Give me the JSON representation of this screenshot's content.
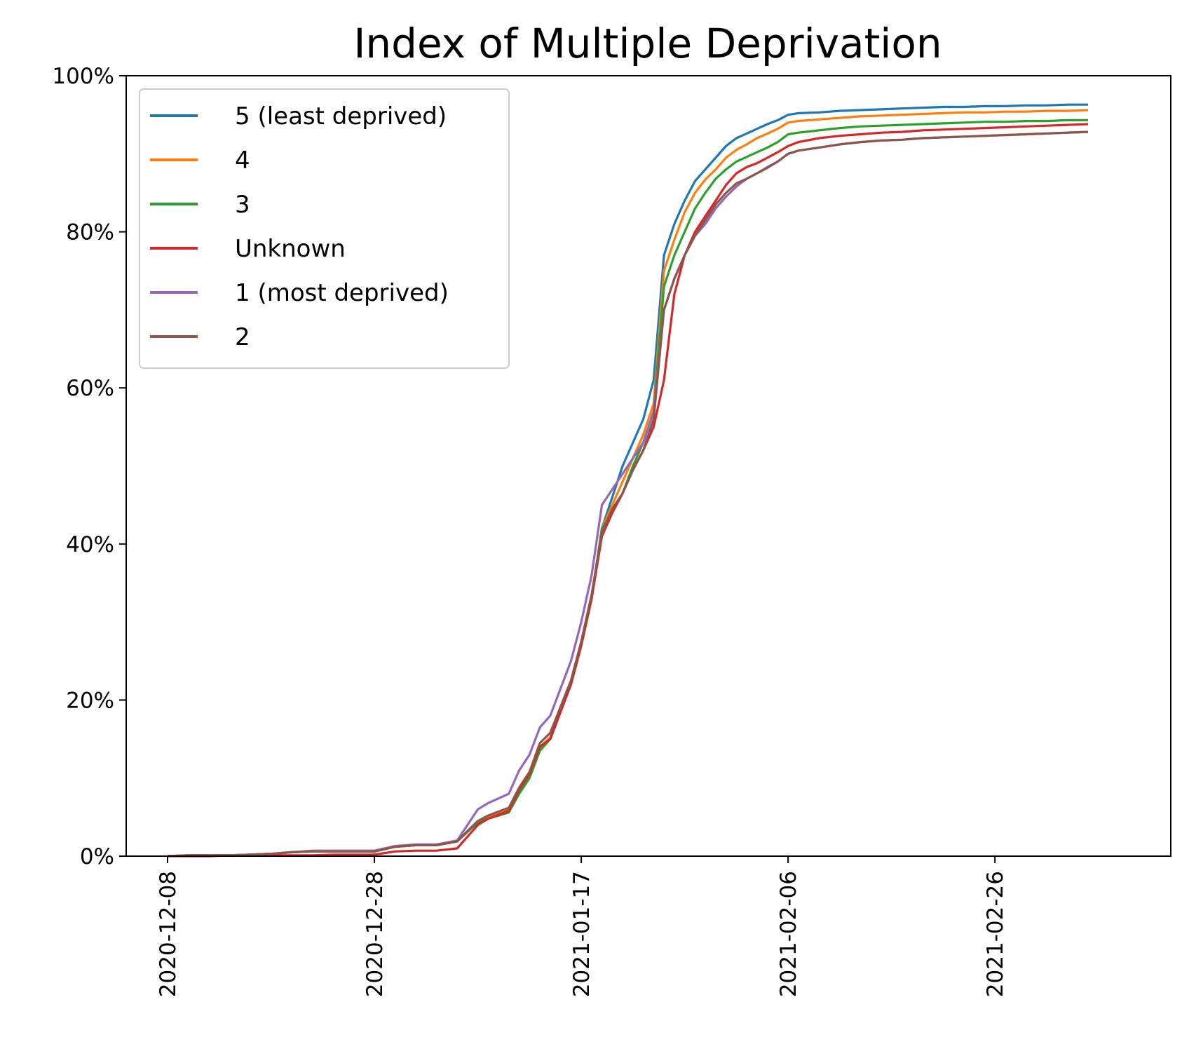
{
  "chart_data": {
    "type": "line",
    "title": "Index of Multiple Deprivation",
    "xlabel": "",
    "ylabel": "",
    "x_unit": "date",
    "x_range": [
      "2020-12-04",
      "2021-03-15"
    ],
    "ylim": [
      0,
      100
    ],
    "y_ticks": [
      0,
      20,
      40,
      60,
      80,
      100
    ],
    "y_tick_labels": [
      "0%",
      "20%",
      "40%",
      "60%",
      "80%",
      "100%"
    ],
    "x_ticks": [
      "2020-12-08",
      "2020-12-28",
      "2021-01-17",
      "2021-02-06",
      "2021-02-26"
    ],
    "x_tick_labels": [
      "2020-12-08",
      "2020-12-28",
      "2021-01-17",
      "2021-02-06",
      "2021-02-26"
    ],
    "grid": false,
    "legend_position": "top-left",
    "x": [
      "2020-12-08",
      "2020-12-10",
      "2020-12-12",
      "2020-12-14",
      "2020-12-16",
      "2020-12-18",
      "2020-12-20",
      "2020-12-22",
      "2020-12-24",
      "2020-12-26",
      "2020-12-28",
      "2020-12-30",
      "2021-01-01",
      "2021-01-03",
      "2021-01-05",
      "2021-01-07",
      "2021-01-08",
      "2021-01-10",
      "2021-01-11",
      "2021-01-12",
      "2021-01-13",
      "2021-01-14",
      "2021-01-16",
      "2021-01-17",
      "2021-01-18",
      "2021-01-19",
      "2021-01-20",
      "2021-01-21",
      "2021-01-22",
      "2021-01-23",
      "2021-01-24",
      "2021-01-25",
      "2021-01-26",
      "2021-01-27",
      "2021-01-28",
      "2021-01-29",
      "2021-01-30",
      "2021-01-31",
      "2021-02-01",
      "2021-02-02",
      "2021-02-03",
      "2021-02-04",
      "2021-02-05",
      "2021-02-06",
      "2021-02-07",
      "2021-02-09",
      "2021-02-11",
      "2021-02-13",
      "2021-02-15",
      "2021-02-17",
      "2021-02-19",
      "2021-02-21",
      "2021-02-23",
      "2021-02-25",
      "2021-02-27",
      "2021-03-01",
      "2021-03-03",
      "2021-03-05",
      "2021-03-07"
    ],
    "series": [
      {
        "name": "5 (least deprived)",
        "color": "#1f77b4",
        "values": [
          0,
          0.1,
          0.1,
          0.1,
          0.2,
          0.3,
          0.5,
          0.6,
          0.6,
          0.6,
          0.6,
          1.2,
          1.4,
          1.4,
          1.9,
          4.5,
          5.0,
          6.0,
          8.5,
          10.5,
          14.0,
          15.2,
          22.0,
          27.0,
          33.0,
          42.0,
          46.0,
          50.0,
          53.0,
          56.0,
          61.0,
          77.0,
          81.0,
          84.0,
          86.5,
          88.0,
          89.5,
          91.0,
          92.0,
          92.6,
          93.2,
          93.8,
          94.3,
          95.0,
          95.2,
          95.3,
          95.5,
          95.6,
          95.7,
          95.8,
          95.9,
          96.0,
          96.0,
          96.1,
          96.1,
          96.2,
          96.2,
          96.3,
          96.3
        ]
      },
      {
        "name": "4",
        "color": "#ff7f0e",
        "values": [
          0,
          0.1,
          0.1,
          0.1,
          0.2,
          0.3,
          0.5,
          0.6,
          0.6,
          0.6,
          0.6,
          1.2,
          1.4,
          1.4,
          1.9,
          4.5,
          5.0,
          6.0,
          8.5,
          10.5,
          14.0,
          15.2,
          22.0,
          27.0,
          33.0,
          42.0,
          45.0,
          48.0,
          51.0,
          54.0,
          58.0,
          75.0,
          79.0,
          82.5,
          85.0,
          86.7,
          88.0,
          89.5,
          90.5,
          91.2,
          92.0,
          92.6,
          93.2,
          94.0,
          94.2,
          94.4,
          94.6,
          94.8,
          94.9,
          95.0,
          95.1,
          95.2,
          95.3,
          95.3,
          95.4,
          95.4,
          95.5,
          95.5,
          95.6
        ]
      },
      {
        "name": "3",
        "color": "#2ca02c",
        "values": [
          0,
          0.1,
          0.1,
          0.1,
          0.2,
          0.3,
          0.5,
          0.6,
          0.6,
          0.6,
          0.6,
          1.2,
          1.4,
          1.4,
          1.9,
          4.3,
          4.8,
          5.6,
          8.0,
          10.0,
          13.5,
          15.0,
          22.0,
          27.0,
          33.0,
          42.0,
          44.0,
          46.5,
          50.0,
          53.0,
          57.0,
          73.0,
          77.0,
          80.0,
          83.0,
          85.0,
          86.8,
          88.0,
          89.0,
          89.6,
          90.2,
          90.8,
          91.5,
          92.5,
          92.7,
          93.0,
          93.3,
          93.5,
          93.6,
          93.7,
          93.8,
          93.9,
          94.0,
          94.1,
          94.1,
          94.2,
          94.2,
          94.3,
          94.3
        ]
      },
      {
        "name": "Unknown",
        "color": "#d62728",
        "values": [
          0,
          0.0,
          0.0,
          0.1,
          0.1,
          0.1,
          0.1,
          0.1,
          0.2,
          0.2,
          0.2,
          0.6,
          0.7,
          0.7,
          1.0,
          4.0,
          4.8,
          5.8,
          8.5,
          10.5,
          14.0,
          15.0,
          22.0,
          27.0,
          33.0,
          41.0,
          44.0,
          46.5,
          49.5,
          52.0,
          55.0,
          61.0,
          72.0,
          77.0,
          80.0,
          82.0,
          84.0,
          86.0,
          87.5,
          88.3,
          88.8,
          89.5,
          90.2,
          91.0,
          91.5,
          92.0,
          92.3,
          92.5,
          92.7,
          92.8,
          93.0,
          93.1,
          93.2,
          93.3,
          93.4,
          93.5,
          93.6,
          93.7,
          93.8
        ]
      },
      {
        "name": "1 (most deprived)",
        "color": "#9467bd",
        "values": [
          0,
          0.1,
          0.1,
          0.1,
          0.2,
          0.3,
          0.5,
          0.7,
          0.7,
          0.7,
          0.7,
          1.3,
          1.5,
          1.5,
          2.0,
          6.0,
          6.8,
          8.0,
          11.0,
          13.0,
          16.5,
          18.0,
          25.0,
          30.0,
          36.0,
          45.0,
          47.0,
          49.0,
          51.0,
          53.0,
          57.0,
          70.0,
          74.0,
          77.0,
          79.5,
          81.0,
          83.0,
          84.5,
          85.8,
          86.8,
          87.5,
          88.3,
          89.0,
          90.0,
          90.4,
          90.8,
          91.2,
          91.5,
          91.7,
          91.8,
          92.0,
          92.1,
          92.2,
          92.3,
          92.4,
          92.5,
          92.6,
          92.7,
          92.8
        ]
      },
      {
        "name": "2",
        "color": "#8c564b",
        "values": [
          0,
          0.1,
          0.1,
          0.1,
          0.2,
          0.3,
          0.5,
          0.6,
          0.6,
          0.6,
          0.6,
          1.2,
          1.4,
          1.4,
          1.9,
          4.5,
          5.2,
          6.2,
          8.8,
          10.8,
          14.5,
          15.8,
          22.5,
          27.5,
          33.5,
          41.5,
          44.5,
          46.5,
          49.5,
          52.0,
          56.0,
          70.0,
          74.0,
          77.0,
          79.5,
          81.5,
          83.5,
          85.0,
          86.2,
          86.8,
          87.5,
          88.2,
          89.0,
          90.0,
          90.4,
          90.8,
          91.2,
          91.5,
          91.7,
          91.8,
          92.0,
          92.1,
          92.2,
          92.3,
          92.4,
          92.5,
          92.6,
          92.7,
          92.8
        ]
      }
    ]
  }
}
